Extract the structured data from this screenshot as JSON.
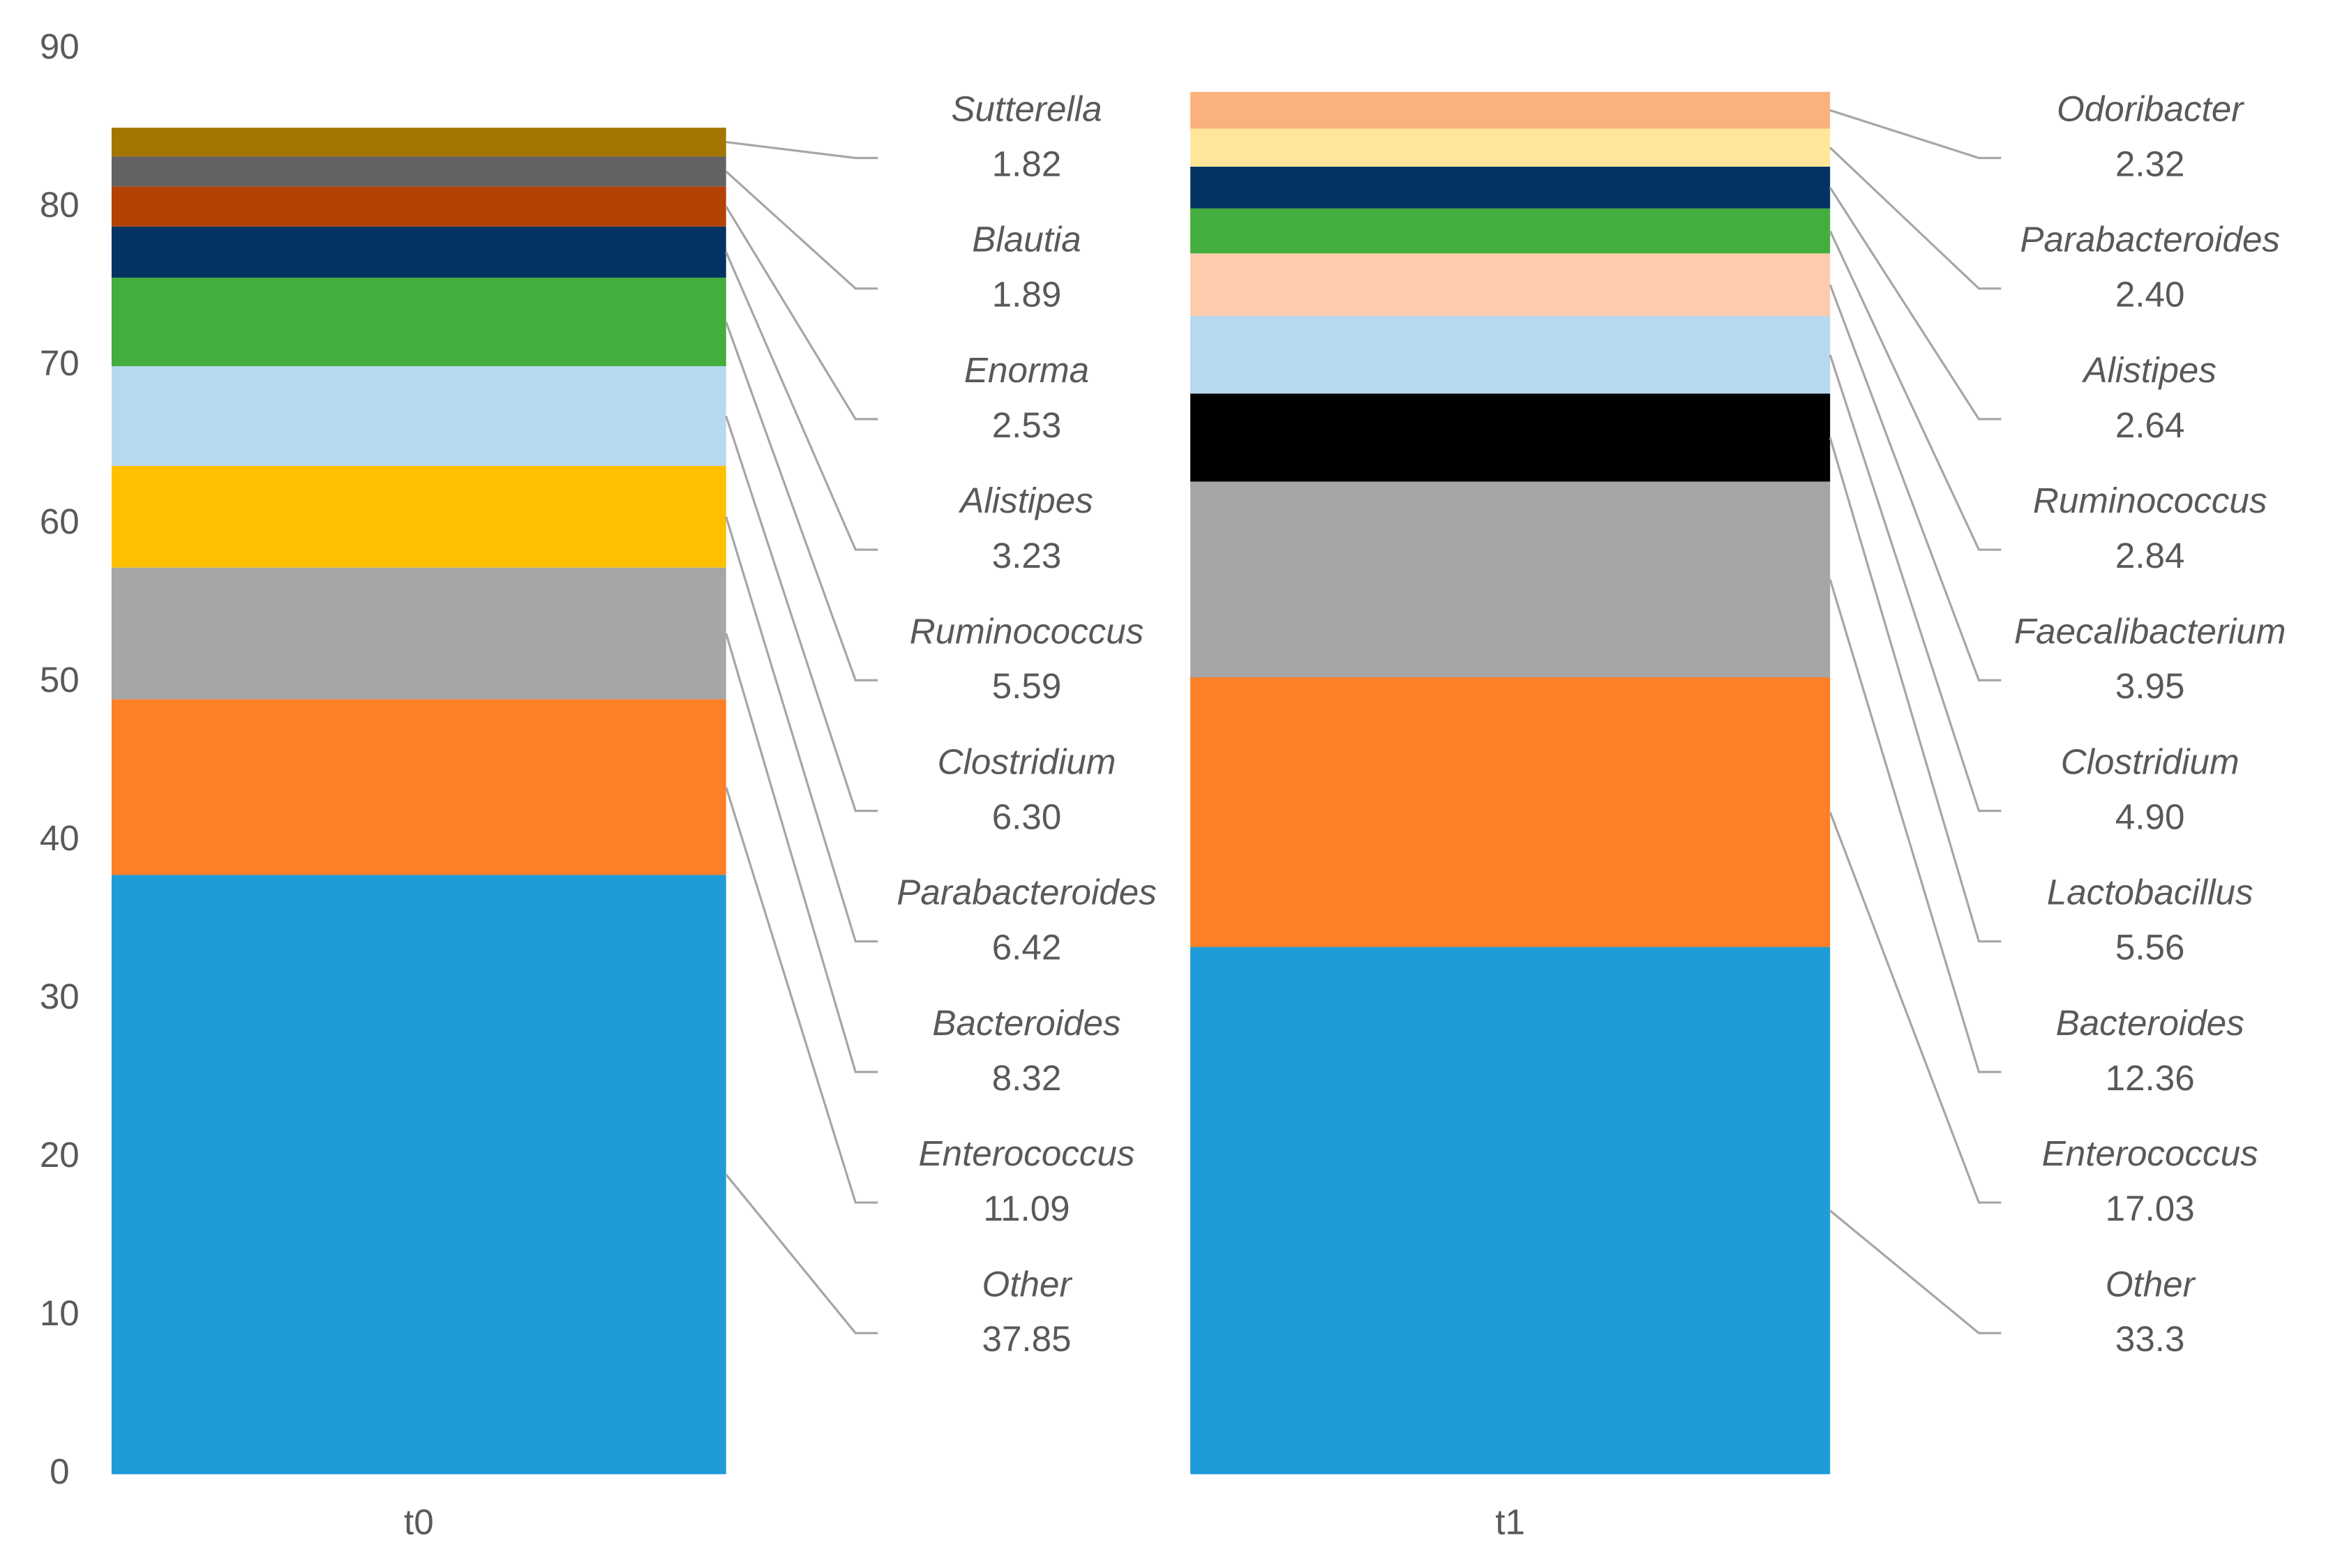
{
  "chart_data": {
    "type": "stacked-bar",
    "ylim": [
      0,
      90
    ],
    "yticks": [
      0,
      10,
      20,
      30,
      40,
      50,
      60,
      70,
      80,
      90
    ],
    "bars": [
      {
        "category": "t0",
        "segments": [
          {
            "name": "Other",
            "value": 37.85,
            "color": "#1f9bd7"
          },
          {
            "name": "Enterococcus",
            "value": 11.09,
            "color": "#fd7f28"
          },
          {
            "name": "Bacteroides",
            "value": 8.32,
            "color": "#a6a6a6"
          },
          {
            "name": "Parabacteroides",
            "value": 6.42,
            "color": "#ffc000"
          },
          {
            "name": "Clostridium",
            "value": 6.3,
            "value_label": "6.30",
            "color": "#b6d8f0"
          },
          {
            "name": "Ruminococcus",
            "value": 5.59,
            "color": "#43ad3d"
          },
          {
            "name": "Alistipes",
            "value": 3.23,
            "color": "#033362"
          },
          {
            "name": "Enorma",
            "value": 2.53,
            "color": "#b34304"
          },
          {
            "name": "Blautia",
            "value": 1.89,
            "color": "#636363"
          },
          {
            "name": "Sutterella",
            "value": 1.82,
            "color": "#a37602"
          }
        ]
      },
      {
        "category": "t1",
        "segments": [
          {
            "name": "Other",
            "value": 33.3,
            "color": "#1f9bd7"
          },
          {
            "name": "Enterococcus",
            "value": 17.03,
            "color": "#fd7f28"
          },
          {
            "name": "Bacteroides",
            "value": 12.36,
            "color": "#a6a6a6"
          },
          {
            "name": "Lactobacillus",
            "value": 5.56,
            "color": "#000000"
          },
          {
            "name": "Clostridium",
            "value": 4.9,
            "value_label": "4.90",
            "color": "#b6d8f0"
          },
          {
            "name": "Faecalibacterium",
            "value": 3.95,
            "color": "#fecbad"
          },
          {
            "name": "Ruminococcus",
            "value": 2.84,
            "color": "#43ad3d"
          },
          {
            "name": "Alistipes",
            "value": 2.64,
            "color": "#033362"
          },
          {
            "name": "Parabacteroides",
            "value": 2.4,
            "value_label": "2.40",
            "color": "#ffe699"
          },
          {
            "name": "Odoribacter",
            "value": 2.32,
            "color": "#fbb17e"
          }
        ]
      }
    ]
  }
}
